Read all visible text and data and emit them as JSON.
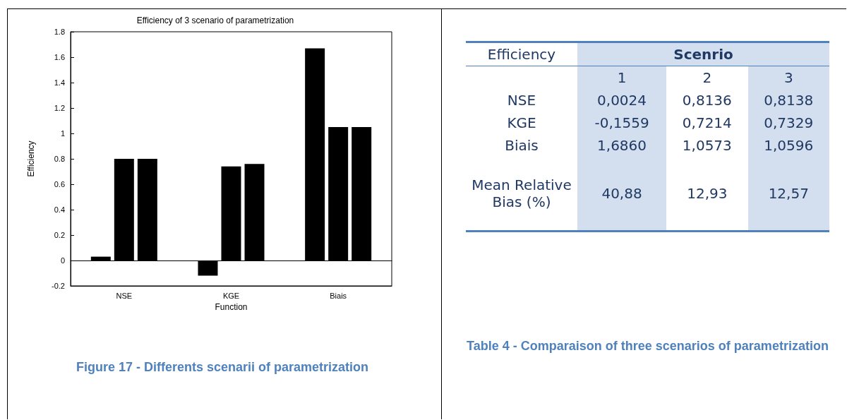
{
  "chart_data": [
    {
      "type": "bar",
      "title": "Efficiency of 3 scenario of parametrization",
      "xlabel": "Function",
      "ylabel": "Efficiency",
      "categories": [
        "NSE",
        "KGE",
        "Biais"
      ],
      "series": [
        {
          "color": "#000000",
          "values": [
            0.03,
            -0.12,
            1.67
          ]
        },
        {
          "color": "#000000",
          "values": [
            0.8,
            0.74,
            1.05
          ]
        },
        {
          "color": "#000000",
          "values": [
            0.8,
            0.76,
            1.05
          ]
        }
      ],
      "ylim": [
        -0.2,
        1.8
      ],
      "yticks": [
        -0.2,
        0,
        0.2,
        0.4,
        0.6,
        0.8,
        1,
        1.2,
        1.4,
        1.6,
        1.8
      ],
      "annotations": [
        "Figure 17 - Differents scenarii of parametrization"
      ]
    },
    {
      "type": "other",
      "title": "Table 4 - Comparaison of three scenarios of parametrization",
      "annotations": [
        "Efficiency",
        "Scenrio",
        "1",
        "2",
        "3",
        "NSE",
        "0,0024",
        "0,8136",
        "0,8138",
        "KGE",
        "-0,1559",
        "0,7214",
        "0,7329",
        "Biais",
        "1,6860",
        "1,0573",
        "1,0596",
        "Mean Relative Bias (%)",
        "40,88",
        "12,93",
        "12,57"
      ]
    }
  ]
}
